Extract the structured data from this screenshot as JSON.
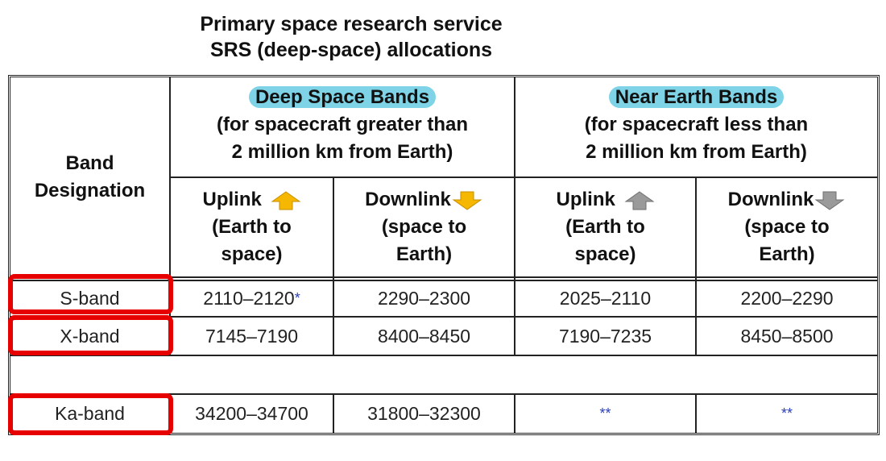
{
  "title": {
    "line1": "Primary space research service",
    "line2": "SRS (deep-space) allocations"
  },
  "header": {
    "band_designation": [
      "Band",
      "Designation"
    ],
    "deep_space": {
      "label": "Deep Space Bands",
      "line2": "(for spacecraft greater than",
      "line3": "2 million km from Earth)"
    },
    "near_earth": {
      "label": "Near Earth Bands",
      "line2": "(for spacecraft less than",
      "line3": "2 million km from Earth)"
    },
    "uplink": {
      "label": "Uplink",
      "line2": "(Earth to",
      "line3": "space)"
    },
    "downlink": {
      "label": "Downlink",
      "line2": "(space to",
      "line3": "Earth)"
    }
  },
  "rows": [
    {
      "band": "S-band",
      "ds_up": "2110–2120",
      "ds_up_note": "*",
      "ds_down": "2290–2300",
      "ne_up": "2025–2110",
      "ne_down": "2200–2290"
    },
    {
      "band": "X-band",
      "ds_up": "7145–7190",
      "ds_up_note": "",
      "ds_down": "8400–8450",
      "ne_up": "7190–7235",
      "ne_down": "8450–8500"
    },
    {
      "band": "Ka-band",
      "ds_up": "34200–34700",
      "ds_up_note": "",
      "ds_down": "31800–32300",
      "ne_up": "**",
      "ne_down": "**"
    }
  ],
  "colors": {
    "highlight": "#7fd3e6",
    "deep_arrow": "#f5b700",
    "near_arrow": "#9a9a9a",
    "red_box": "#e60000",
    "note": "#2a3fb8"
  },
  "icons": {
    "deep_uplink": "up-arrow-icon",
    "deep_downlink": "down-arrow-icon",
    "near_uplink": "up-arrow-icon",
    "near_downlink": "down-arrow-icon"
  }
}
